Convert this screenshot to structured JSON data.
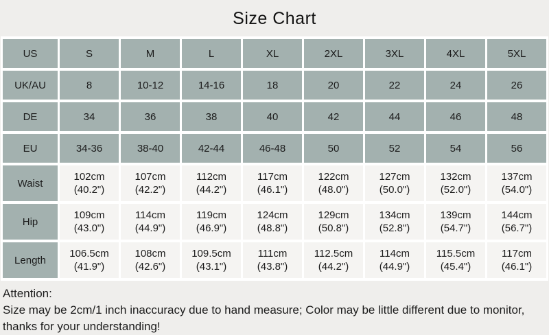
{
  "page": {
    "title": "Size Chart"
  },
  "colors": {
    "page_bg": "#efeeec",
    "cell_green": "#a3b1af",
    "cell_light": "#f5f4f2",
    "gap_white": "#ffffff",
    "text": "#1c1c1c"
  },
  "chart_data": {
    "type": "table",
    "title": "Size Chart",
    "columns": [
      "",
      "S",
      "M",
      "L",
      "XL",
      "2XL",
      "3XL",
      "4XL",
      "5XL"
    ],
    "rows": [
      {
        "label": "US",
        "values": [
          "S",
          "M",
          "L",
          "XL",
          "2XL",
          "3XL",
          "4XL",
          "5XL"
        ]
      },
      {
        "label": "UK/AU",
        "values": [
          "8",
          "10-12",
          "14-16",
          "18",
          "20",
          "22",
          "24",
          "26"
        ]
      },
      {
        "label": "DE",
        "values": [
          "34",
          "36",
          "38",
          "40",
          "42",
          "44",
          "46",
          "48"
        ]
      },
      {
        "label": "EU",
        "values": [
          "34-36",
          "38-40",
          "42-44",
          "46-48",
          "50",
          "52",
          "54",
          "56"
        ]
      },
      {
        "label": "Waist",
        "values": [
          "102cm\n(40.2\")",
          "107cm\n(42.2\")",
          "112cm\n(44.2\")",
          "117cm\n(46.1\")",
          "122cm\n(48.0\")",
          "127cm\n(50.0\")",
          "132cm\n(52.0\")",
          "137cm\n(54.0\")"
        ]
      },
      {
        "label": "Hip",
        "values": [
          "109cm\n(43.0\")",
          "114cm\n(44.9\")",
          "119cm\n(46.9\")",
          "124cm\n(48.8\")",
          "129cm\n(50.8\")",
          "134cm\n(52.8\")",
          "139cm\n(54.7\")",
          "144cm\n(56.7\")"
        ]
      },
      {
        "label": "Length",
        "values": [
          "106.5cm\n(41.9\")",
          "108cm\n(42.6\")",
          "109.5cm\n(43.1\")",
          "111cm\n(43.8\")",
          "112.5cm\n(44.2\")",
          "114cm\n(44.9\")",
          "115.5cm\n(45.4\")",
          "117cm\n(46.1\")"
        ]
      }
    ]
  },
  "attention": {
    "heading": "Attention:",
    "note": "Size may be 2cm/1 inch inaccuracy due to hand measure; Color may be little different due to monitor, thanks for your understanding!"
  }
}
